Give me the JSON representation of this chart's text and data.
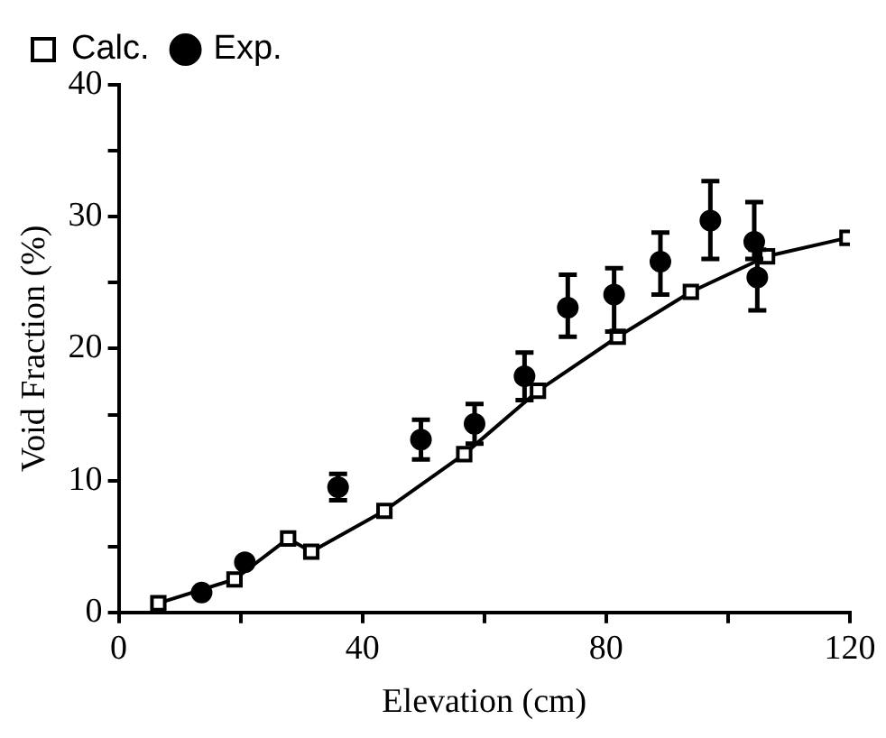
{
  "chart_data": {
    "type": "line",
    "xlabel": "Elevation (cm)",
    "ylabel": "Void Fraction (%)",
    "xlim": [
      0,
      120
    ],
    "ylim": [
      0,
      40
    ],
    "xticks": [
      0,
      {
        "value": 20,
        "label": null
      },
      40,
      {
        "value": 60,
        "label": null
      },
      80,
      {
        "value": 100,
        "label": null
      },
      120
    ],
    "yticks": [
      0,
      {
        "value": 5,
        "label": null
      },
      10,
      {
        "value": 15,
        "label": null
      },
      20,
      {
        "value": 25,
        "label": null
      },
      30,
      {
        "value": 35,
        "label": null
      },
      40
    ],
    "legend": "top left",
    "series": [
      {
        "name": "Calc.",
        "marker": "square",
        "line_style": "solid",
        "color": "#000000",
        "x": [
          6.5,
          19,
          27.8,
          31.6,
          43.6,
          56.7,
          68.8,
          81.9,
          93.9,
          106.4,
          119.6
        ],
        "values": [
          0.7,
          2.5,
          5.6,
          4.6,
          7.7,
          12.0,
          16.8,
          20.9,
          24.3,
          27.0,
          28.4
        ]
      },
      {
        "name": "Exp.",
        "type": "scatter",
        "marker": "circle",
        "color": "#000000",
        "x": [
          13.6,
          20.7,
          36.0,
          49.6,
          58.4,
          66.6,
          73.7,
          81.3,
          88.9,
          97.1,
          104.3,
          104.8
        ],
        "values": [
          1.5,
          3.8,
          9.5,
          13.1,
          14.3,
          17.9,
          23.1,
          24.1,
          26.6,
          29.7,
          28.1,
          25.4
        ],
        "errors": [
          null,
          null,
          1.0,
          1.5,
          1.5,
          1.8,
          [
            20.9,
            25.6
          ],
          [
            21.3,
            26.1
          ],
          [
            24.1,
            28.8
          ],
          [
            26.8,
            32.7
          ],
          [
            26.8,
            31.1
          ],
          [
            22.9,
            27.5
          ]
        ]
      }
    ]
  }
}
